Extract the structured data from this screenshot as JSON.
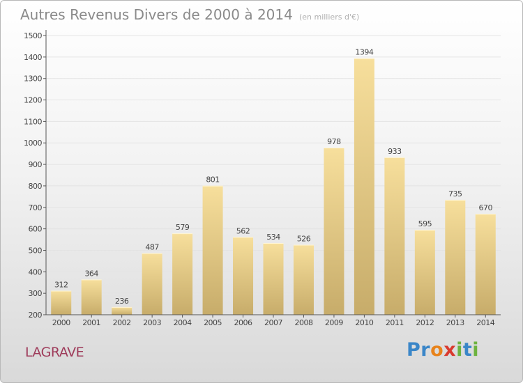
{
  "header": {
    "title": "Autres Revenus Divers de 2000 à 2014",
    "subtitle": "(en milliers d'€)"
  },
  "footer": {
    "commune": "LAGRAVE",
    "brand": [
      "P",
      "r",
      "o",
      "x",
      "i",
      "t",
      "i"
    ],
    "brand_colors": [
      "#3a86c8",
      "#3a86c8",
      "#e8831b",
      "#d93a2f",
      "#6db33f",
      "#3a86c8",
      "#6db33f"
    ]
  },
  "colors": {
    "bar_light": "#f7df9c",
    "bar_dark": "#c7ac6a",
    "grid": "#e3e3e3",
    "axis": "#555555",
    "label": "#444444",
    "commune": "#9e3b5a"
  },
  "chart_data": {
    "type": "bar",
    "categories": [
      "2000",
      "2001",
      "2002",
      "2003",
      "2004",
      "2005",
      "2006",
      "2007",
      "2008",
      "2009",
      "2010",
      "2011",
      "2012",
      "2013",
      "2014"
    ],
    "values": [
      312,
      364,
      236,
      487,
      579,
      801,
      562,
      534,
      526,
      978,
      1394,
      933,
      595,
      735,
      670
    ],
    "data_labels": [
      "312",
      "364",
      "236",
      "487",
      "579",
      "801",
      "562",
      "534",
      "526",
      "978",
      "1394",
      "933",
      "595",
      "735",
      "670"
    ],
    "yticks": [
      200,
      300,
      400,
      500,
      600,
      700,
      800,
      900,
      1000,
      1100,
      1200,
      1300,
      1400,
      1500
    ],
    "ylim": [
      200,
      1500
    ],
    "xlabel": "",
    "ylabel": "",
    "grid": true
  }
}
